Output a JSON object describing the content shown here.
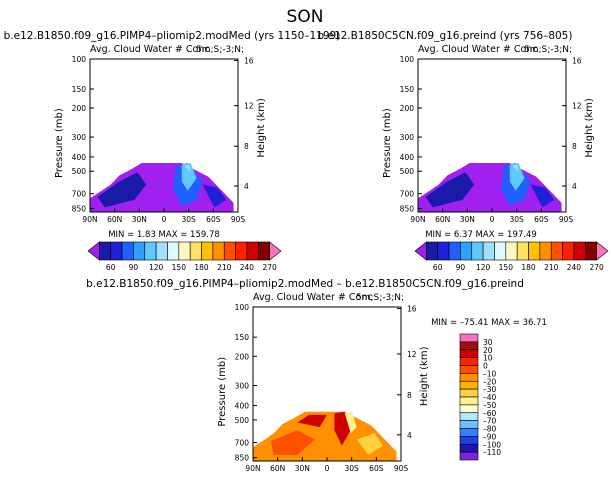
{
  "page_title": "SON",
  "chart_data": [
    {
      "type": "heatmap",
      "title": "b.e12.B1850.f09_g16.PIMP4–pliomip2.modMed (yrs 1150–1199)",
      "subtitle": "Avg. Cloud Water # Conc",
      "corner_label": "5m;S;-3;N;",
      "ylabel": "Pressure (mb)",
      "ylabel_right": "Height (km)",
      "x_ticks": [
        "90N",
        "60N",
        "30N",
        "0",
        "30S",
        "60S",
        "90S"
      ],
      "y_ticks": [
        "100",
        "150",
        "200",
        "300",
        "400",
        "500",
        "700",
        "850"
      ],
      "y_right_ticks": [
        "16",
        "12",
        "8",
        "4"
      ],
      "stats": "MIN =   1.83   MAX = 159.78",
      "colorbar_labels": [
        "60",
        "90",
        "120",
        "150",
        "180",
        "210",
        "240",
        "270"
      ]
    },
    {
      "type": "heatmap",
      "title": "b.e12.B1850C5CN.f09_g16.preind (yrs 756–805)",
      "subtitle": "Avg. Cloud Water # Conc",
      "corner_label": "5m;S;-3;N;",
      "ylabel": "Pressure (mb)",
      "ylabel_right": "Height (km)",
      "x_ticks": [
        "90N",
        "60N",
        "30N",
        "0",
        "30S",
        "60S",
        "90S"
      ],
      "y_ticks": [
        "100",
        "150",
        "200",
        "300",
        "400",
        "500",
        "700",
        "850"
      ],
      "y_right_ticks": [
        "16",
        "12",
        "8",
        "4"
      ],
      "stats": "MIN =   6.37   MAX = 197.49",
      "colorbar_labels": [
        "60",
        "90",
        "120",
        "150",
        "180",
        "210",
        "240",
        "270"
      ]
    },
    {
      "type": "heatmap",
      "title": "b.e12.B1850.f09_g16.PIMP4–pliomip2.modMed – b.e12.B1850C5CN.f09_g16.preind",
      "subtitle": "Avg. Cloud Water # Conc",
      "corner_label": "5m;S;-3;N;",
      "ylabel": "Pressure (mb)",
      "ylabel_right": "Height (km)",
      "x_ticks": [
        "90N",
        "60N",
        "30N",
        "0",
        "30S",
        "60S",
        "90S"
      ],
      "y_ticks": [
        "100",
        "150",
        "200",
        "300",
        "400",
        "500",
        "700",
        "850"
      ],
      "y_right_ticks": [
        "16",
        "12",
        "8",
        "4"
      ],
      "stats": "MIN = –75.41   MAX =  36.71",
      "colorbar_labels": [
        "30",
        "20",
        "10",
        "0",
        "–10",
        "–20",
        "–30",
        "–40",
        "–50",
        "–60",
        "–70",
        "–80",
        "–90",
        "–100",
        "–110"
      ]
    }
  ],
  "colors": {
    "abs_scale": [
      "#a020f0",
      "#1a1aa8",
      "#2020d8",
      "#2060ff",
      "#30a0ff",
      "#60c8ff",
      "#a0e0ff",
      "#e0f8ff",
      "#fff8c0",
      "#ffe060",
      "#ffc000",
      "#ff9000",
      "#ff5000",
      "#ff2000",
      "#d00000",
      "#800000",
      "#ff70c0"
    ],
    "diff_scale": [
      "#ff70c0",
      "#a01010",
      "#d00000",
      "#ff2000",
      "#ff5000",
      "#ff9000",
      "#ffb000",
      "#ffd040",
      "#fff090",
      "#ffffd0",
      "#b0e8ff",
      "#70c0ff",
      "#3080ff",
      "#2040e0",
      "#1818b0",
      "#8020e0"
    ]
  }
}
